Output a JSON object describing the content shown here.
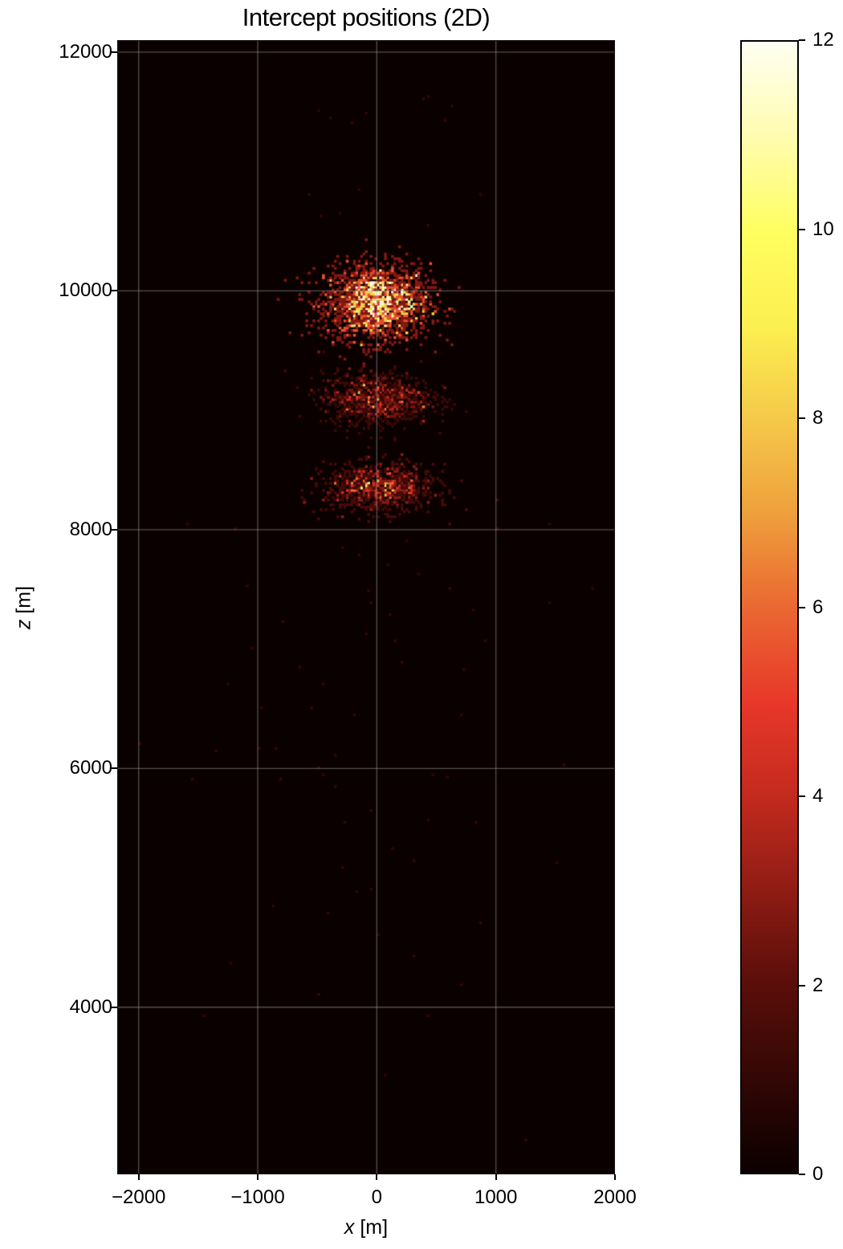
{
  "chart_data": {
    "type": "heatmap",
    "title": "Intercept positions (2D)",
    "xlabel_var": "x",
    "xlabel_unit": " [m]",
    "ylabel_var": "z",
    "ylabel_unit": " [m]",
    "xlim": [
      -2180,
      2000
    ],
    "ylim": [
      2600,
      12100
    ],
    "xticks": [
      {
        "value": -2000,
        "label": "−2000"
      },
      {
        "value": -1000,
        "label": "−1000"
      },
      {
        "value": 0,
        "label": "0"
      },
      {
        "value": 1000,
        "label": "1000"
      },
      {
        "value": 2000,
        "label": "2000"
      }
    ],
    "yticks": [
      {
        "value": 4000,
        "label": "4000"
      },
      {
        "value": 6000,
        "label": "6000"
      },
      {
        "value": 8000,
        "label": "8000"
      },
      {
        "value": 10000,
        "label": "10000"
      },
      {
        "value": 12000,
        "label": "12000"
      }
    ],
    "grid": true,
    "colormap": "afmhot",
    "colorbar": {
      "min": 0,
      "max": 12,
      "ticks": [
        {
          "value": 0,
          "label": "0"
        },
        {
          "value": 2,
          "label": "2"
        },
        {
          "value": 4,
          "label": "4"
        },
        {
          "value": 6,
          "label": "6"
        },
        {
          "value": 8,
          "label": "8"
        },
        {
          "value": 10,
          "label": "10"
        },
        {
          "value": 12,
          "label": "12"
        }
      ],
      "stops": [
        {
          "v": 0,
          "color": "#0b0000"
        },
        {
          "v": 2,
          "color": "#5a0e0a"
        },
        {
          "v": 4,
          "color": "#c42a1e"
        },
        {
          "v": 5,
          "color": "#e8382a"
        },
        {
          "v": 6,
          "color": "#ea6832"
        },
        {
          "v": 7,
          "color": "#eea03c"
        },
        {
          "v": 8,
          "color": "#f5c94a"
        },
        {
          "v": 9,
          "color": "#fcf050"
        },
        {
          "v": 10,
          "color": "#fffe60"
        },
        {
          "v": 11,
          "color": "#fffcb0"
        },
        {
          "v": 12,
          "color": "#fffff2"
        }
      ]
    },
    "bin_size_m": 20,
    "clusters": [
      {
        "label": "upper cluster",
        "cx": 0,
        "cz": 9900,
        "sx": 220,
        "sz": 160,
        "peak": 11,
        "n": 1800
      },
      {
        "label": "middle cluster",
        "cx": 0,
        "cz": 9100,
        "sx": 230,
        "sz": 110,
        "peak": 5,
        "n": 900
      },
      {
        "label": "lower cluster",
        "cx": 20,
        "cz": 8350,
        "sx": 230,
        "sz": 100,
        "peak": 6,
        "n": 850
      }
    ],
    "sparse_points": [
      [
        -500,
        11500
      ],
      [
        -400,
        11450
      ],
      [
        -220,
        11400
      ],
      [
        -100,
        11480
      ],
      [
        380,
        11600
      ],
      [
        430,
        11630
      ],
      [
        620,
        11550
      ],
      [
        560,
        11420
      ],
      [
        -150,
        10850
      ],
      [
        -580,
        10800
      ],
      [
        860,
        10800
      ],
      [
        -470,
        10620
      ],
      [
        -320,
        10640
      ],
      [
        420,
        10550
      ],
      [
        150,
        10250
      ],
      [
        -1600,
        8050
      ],
      [
        -1200,
        8000
      ],
      [
        1000,
        8000
      ],
      [
        1450,
        8050
      ],
      [
        -800,
        7230
      ],
      [
        -1100,
        7520
      ],
      [
        1450,
        7390
      ],
      [
        1800,
        7500
      ],
      [
        -1050,
        7000
      ],
      [
        -650,
        6850
      ],
      [
        -450,
        6700
      ],
      [
        -1250,
        6700
      ],
      [
        -980,
        6500
      ],
      [
        -550,
        6500
      ],
      [
        -200,
        6440
      ],
      [
        700,
        6440
      ],
      [
        -1350,
        6150
      ],
      [
        -1000,
        6160
      ],
      [
        -850,
        6170
      ],
      [
        -500,
        6000
      ],
      [
        -350,
        6100
      ],
      [
        1570,
        6030
      ],
      [
        -2000,
        6210
      ],
      [
        -1550,
        5900
      ],
      [
        -820,
        5900
      ],
      [
        -350,
        5840
      ],
      [
        -450,
        5950
      ],
      [
        470,
        5940
      ],
      [
        580,
        5930
      ],
      [
        -50,
        5640
      ],
      [
        420,
        5560
      ],
      [
        820,
        5550
      ],
      [
        -280,
        5550
      ],
      [
        130,
        5330
      ],
      [
        300,
        5220
      ],
      [
        1500,
        5210
      ],
      [
        -300,
        5160
      ],
      [
        -50,
        4990
      ],
      [
        -180,
        4960
      ],
      [
        -880,
        4850
      ],
      [
        -420,
        4780
      ],
      [
        860,
        4710
      ],
      [
        0,
        4610
      ],
      [
        300,
        4420
      ],
      [
        -1230,
        4370
      ],
      [
        710,
        4180
      ],
      [
        -500,
        4110
      ],
      [
        -1460,
        3930
      ],
      [
        430,
        3920
      ],
      [
        60,
        3420
      ],
      [
        1240,
        2890
      ],
      [
        -300,
        7850
      ],
      [
        -150,
        7780
      ],
      [
        80,
        7700
      ],
      [
        250,
        7900
      ],
      [
        350,
        7620
      ],
      [
        -80,
        7480
      ],
      [
        -50,
        7380
      ],
      [
        100,
        7280
      ],
      [
        600,
        7500
      ],
      [
        800,
        7320
      ],
      [
        900,
        7060
      ],
      [
        720,
        6820
      ],
      [
        -100,
        7120
      ],
      [
        150,
        7060
      ],
      [
        210,
        6880
      ]
    ]
  }
}
